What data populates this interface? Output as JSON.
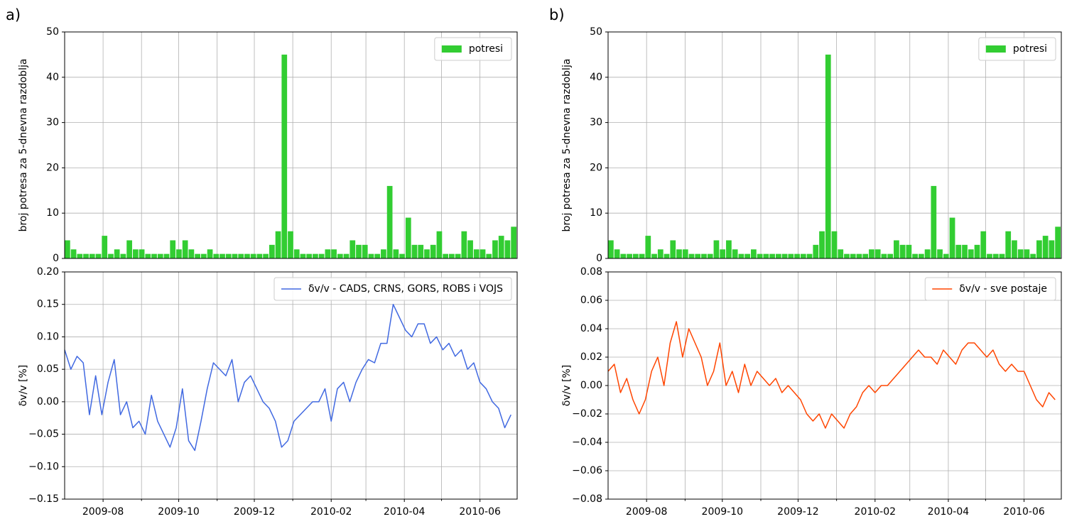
{
  "chart_data": [
    {
      "type": "histogram",
      "panel_label": "a)",
      "ylabel": "broj potresa za 5-dnevna razdoblja",
      "bins": [
        "2009-07-01",
        "2009-07-06",
        "2009-07-11",
        "2009-07-16",
        "2009-07-21",
        "2009-07-26",
        "2009-07-31",
        "2009-08-05",
        "2009-08-10",
        "2009-08-15",
        "2009-08-20",
        "2009-08-25",
        "2009-08-30",
        "2009-09-04",
        "2009-09-09",
        "2009-09-14",
        "2009-09-19",
        "2009-09-24",
        "2009-09-29",
        "2009-10-04",
        "2009-10-09",
        "2009-10-14",
        "2009-10-19",
        "2009-10-24",
        "2009-10-29",
        "2009-11-03",
        "2009-11-08",
        "2009-11-13",
        "2009-11-18",
        "2009-11-23",
        "2009-11-28",
        "2009-12-03",
        "2009-12-08",
        "2009-12-13",
        "2009-12-18",
        "2009-12-23",
        "2009-12-28",
        "2010-01-02",
        "2010-01-07",
        "2010-01-12",
        "2010-01-17",
        "2010-01-22",
        "2010-01-27",
        "2010-02-01",
        "2010-02-06",
        "2010-02-11",
        "2010-02-16",
        "2010-02-21",
        "2010-02-26",
        "2010-03-03",
        "2010-03-08",
        "2010-03-13",
        "2010-03-18",
        "2010-03-23",
        "2010-03-28",
        "2010-04-02",
        "2010-04-07",
        "2010-04-12",
        "2010-04-17",
        "2010-04-22",
        "2010-04-27",
        "2010-05-02",
        "2010-05-07",
        "2010-05-12",
        "2010-05-17",
        "2010-05-22",
        "2010-05-27",
        "2010-06-01",
        "2010-06-06",
        "2010-06-11",
        "2010-06-16",
        "2010-06-21",
        "2010-06-26",
        "2010-07-01"
      ],
      "series": [
        {
          "name": "potresi",
          "color": "#32cd32",
          "values": [
            4,
            2,
            1,
            1,
            1,
            1,
            5,
            1,
            2,
            1,
            4,
            2,
            2,
            1,
            1,
            1,
            1,
            4,
            2,
            4,
            2,
            1,
            1,
            2,
            1,
            1,
            1,
            1,
            1,
            1,
            1,
            1,
            1,
            3,
            6,
            45,
            6,
            2,
            1,
            1,
            1,
            1,
            2,
            2,
            1,
            1,
            4,
            3,
            3,
            1,
            1,
            2,
            16,
            2,
            1,
            9,
            3,
            3,
            2,
            3,
            6,
            1,
            1,
            1,
            6,
            4,
            2,
            2,
            1,
            4,
            5,
            4,
            7
          ]
        }
      ],
      "xlim": [
        "2009-07-01",
        "2010-07-01"
      ],
      "xticks": [
        "2009-08-01",
        "2009-09-01",
        "2009-10-01",
        "2009-11-01",
        "2009-12-01",
        "2010-01-01",
        "2010-02-01",
        "2010-03-01",
        "2010-04-01",
        "2010-05-01",
        "2010-06-01"
      ],
      "ylim": [
        0,
        50
      ],
      "yticks": [
        0,
        10,
        20,
        30,
        40,
        50
      ],
      "grid": true,
      "legend": "upper right"
    },
    {
      "type": "line",
      "ylabel": "δv/v [%]",
      "x": [
        "2009-07-01",
        "2009-07-06",
        "2009-07-11",
        "2009-07-16",
        "2009-07-21",
        "2009-07-26",
        "2009-07-31",
        "2009-08-05",
        "2009-08-10",
        "2009-08-15",
        "2009-08-20",
        "2009-08-25",
        "2009-08-30",
        "2009-09-04",
        "2009-09-09",
        "2009-09-14",
        "2009-09-19",
        "2009-09-24",
        "2009-09-29",
        "2009-10-04",
        "2009-10-09",
        "2009-10-14",
        "2009-10-19",
        "2009-10-24",
        "2009-10-29",
        "2009-11-03",
        "2009-11-08",
        "2009-11-13",
        "2009-11-18",
        "2009-11-23",
        "2009-11-28",
        "2009-12-03",
        "2009-12-08",
        "2009-12-13",
        "2009-12-18",
        "2009-12-23",
        "2009-12-28",
        "2010-01-02",
        "2010-01-07",
        "2010-01-12",
        "2010-01-17",
        "2010-01-22",
        "2010-01-27",
        "2010-02-01",
        "2010-02-06",
        "2010-02-11",
        "2010-02-16",
        "2010-02-21",
        "2010-02-26",
        "2010-03-03",
        "2010-03-08",
        "2010-03-13",
        "2010-03-18",
        "2010-03-23",
        "2010-03-28",
        "2010-04-02",
        "2010-04-07",
        "2010-04-12",
        "2010-04-17",
        "2010-04-22",
        "2010-04-27",
        "2010-05-02",
        "2010-05-07",
        "2010-05-12",
        "2010-05-17",
        "2010-05-22",
        "2010-05-27",
        "2010-06-01",
        "2010-06-06",
        "2010-06-11",
        "2010-06-16",
        "2010-06-21",
        "2010-06-26"
      ],
      "series": [
        {
          "name": "δv/v - CADS, CRNS, GORS, ROBS i VOJS",
          "color": "#4169e1",
          "values": [
            0.08,
            0.05,
            0.07,
            0.06,
            -0.02,
            0.04,
            -0.02,
            0.03,
            0.065,
            -0.02,
            0.0,
            -0.04,
            -0.03,
            -0.05,
            0.01,
            -0.03,
            -0.05,
            -0.07,
            -0.04,
            0.02,
            -0.06,
            -0.075,
            -0.03,
            0.02,
            0.06,
            0.05,
            0.04,
            0.065,
            0.0,
            0.03,
            0.04,
            0.02,
            0.0,
            -0.01,
            -0.03,
            -0.07,
            -0.06,
            -0.03,
            -0.02,
            -0.01,
            0.0,
            0.0,
            0.02,
            -0.03,
            0.02,
            0.03,
            0.0,
            0.03,
            0.05,
            0.065,
            0.06,
            0.09,
            0.09,
            0.15,
            0.13,
            0.11,
            0.1,
            0.12,
            0.12,
            0.09,
            0.1,
            0.08,
            0.09,
            0.07,
            0.08,
            0.05,
            0.06,
            0.03,
            0.02,
            0.0,
            -0.01,
            -0.04,
            -0.02
          ]
        }
      ],
      "xlim": [
        "2009-07-01",
        "2010-07-01"
      ],
      "xticks": [
        {
          "value": "2009-08-01",
          "label": "2009-08"
        },
        {
          "value": "2009-09-01",
          "label": null
        },
        {
          "value": "2009-10-01",
          "label": "2009-10"
        },
        {
          "value": "2009-11-01",
          "label": null
        },
        {
          "value": "2009-12-01",
          "label": "2009-12"
        },
        {
          "value": "2010-01-01",
          "label": null
        },
        {
          "value": "2010-02-01",
          "label": "2010-02"
        },
        {
          "value": "2010-03-01",
          "label": null
        },
        {
          "value": "2010-04-01",
          "label": "2010-04"
        },
        {
          "value": "2010-05-01",
          "label": null
        },
        {
          "value": "2010-06-01",
          "label": "2010-06"
        }
      ],
      "ylim": [
        -0.15,
        0.2
      ],
      "yticks": [
        {
          "value": -0.15,
          "label": "−0.15"
        },
        {
          "value": -0.1,
          "label": "−0.10"
        },
        {
          "value": -0.05,
          "label": "−0.05"
        },
        {
          "value": 0,
          "label": "0.00"
        },
        {
          "value": 0.05,
          "label": "0.05"
        },
        {
          "value": 0.1,
          "label": "0.10"
        },
        {
          "value": 0.15,
          "label": "0.15"
        },
        {
          "value": 0.2,
          "label": "0.20"
        }
      ],
      "grid": true,
      "legend": "upper right"
    },
    {
      "type": "histogram",
      "panel_label": "b)",
      "ylabel": "broj potresa za 5-dnevna razdoblja",
      "bins": [
        "2009-07-01",
        "2009-07-06",
        "2009-07-11",
        "2009-07-16",
        "2009-07-21",
        "2009-07-26",
        "2009-07-31",
        "2009-08-05",
        "2009-08-10",
        "2009-08-15",
        "2009-08-20",
        "2009-08-25",
        "2009-08-30",
        "2009-09-04",
        "2009-09-09",
        "2009-09-14",
        "2009-09-19",
        "2009-09-24",
        "2009-09-29",
        "2009-10-04",
        "2009-10-09",
        "2009-10-14",
        "2009-10-19",
        "2009-10-24",
        "2009-10-29",
        "2009-11-03",
        "2009-11-08",
        "2009-11-13",
        "2009-11-18",
        "2009-11-23",
        "2009-11-28",
        "2009-12-03",
        "2009-12-08",
        "2009-12-13",
        "2009-12-18",
        "2009-12-23",
        "2009-12-28",
        "2010-01-02",
        "2010-01-07",
        "2010-01-12",
        "2010-01-17",
        "2010-01-22",
        "2010-01-27",
        "2010-02-01",
        "2010-02-06",
        "2010-02-11",
        "2010-02-16",
        "2010-02-21",
        "2010-02-26",
        "2010-03-03",
        "2010-03-08",
        "2010-03-13",
        "2010-03-18",
        "2010-03-23",
        "2010-03-28",
        "2010-04-02",
        "2010-04-07",
        "2010-04-12",
        "2010-04-17",
        "2010-04-22",
        "2010-04-27",
        "2010-05-02",
        "2010-05-07",
        "2010-05-12",
        "2010-05-17",
        "2010-05-22",
        "2010-05-27",
        "2010-06-01",
        "2010-06-06",
        "2010-06-11",
        "2010-06-16",
        "2010-06-21",
        "2010-06-26",
        "2010-07-01"
      ],
      "series": [
        {
          "name": "potresi",
          "color": "#32cd32",
          "values": [
            4,
            2,
            1,
            1,
            1,
            1,
            5,
            1,
            2,
            1,
            4,
            2,
            2,
            1,
            1,
            1,
            1,
            4,
            2,
            4,
            2,
            1,
            1,
            2,
            1,
            1,
            1,
            1,
            1,
            1,
            1,
            1,
            1,
            3,
            6,
            45,
            6,
            2,
            1,
            1,
            1,
            1,
            2,
            2,
            1,
            1,
            4,
            3,
            3,
            1,
            1,
            2,
            16,
            2,
            1,
            9,
            3,
            3,
            2,
            3,
            6,
            1,
            1,
            1,
            6,
            4,
            2,
            2,
            1,
            4,
            5,
            4,
            7
          ]
        }
      ],
      "xlim": [
        "2009-07-01",
        "2010-07-01"
      ],
      "xticks": [
        "2009-08-01",
        "2009-09-01",
        "2009-10-01",
        "2009-11-01",
        "2009-12-01",
        "2010-01-01",
        "2010-02-01",
        "2010-03-01",
        "2010-04-01",
        "2010-05-01",
        "2010-06-01"
      ],
      "ylim": [
        0,
        50
      ],
      "yticks": [
        0,
        10,
        20,
        30,
        40,
        50
      ],
      "grid": true,
      "legend": "upper right"
    },
    {
      "type": "line",
      "ylabel": "δv/v [%]",
      "x": [
        "2009-07-01",
        "2009-07-06",
        "2009-07-11",
        "2009-07-16",
        "2009-07-21",
        "2009-07-26",
        "2009-07-31",
        "2009-08-05",
        "2009-08-10",
        "2009-08-15",
        "2009-08-20",
        "2009-08-25",
        "2009-08-30",
        "2009-09-04",
        "2009-09-09",
        "2009-09-14",
        "2009-09-19",
        "2009-09-24",
        "2009-09-29",
        "2009-10-04",
        "2009-10-09",
        "2009-10-14",
        "2009-10-19",
        "2009-10-24",
        "2009-10-29",
        "2009-11-03",
        "2009-11-08",
        "2009-11-13",
        "2009-11-18",
        "2009-11-23",
        "2009-11-28",
        "2009-12-03",
        "2009-12-08",
        "2009-12-13",
        "2009-12-18",
        "2009-12-23",
        "2009-12-28",
        "2010-01-02",
        "2010-01-07",
        "2010-01-12",
        "2010-01-17",
        "2010-01-22",
        "2010-01-27",
        "2010-02-01",
        "2010-02-06",
        "2010-02-11",
        "2010-02-16",
        "2010-02-21",
        "2010-02-26",
        "2010-03-03",
        "2010-03-08",
        "2010-03-13",
        "2010-03-18",
        "2010-03-23",
        "2010-03-28",
        "2010-04-02",
        "2010-04-07",
        "2010-04-12",
        "2010-04-17",
        "2010-04-22",
        "2010-04-27",
        "2010-05-02",
        "2010-05-07",
        "2010-05-12",
        "2010-05-17",
        "2010-05-22",
        "2010-05-27",
        "2010-06-01",
        "2010-06-06",
        "2010-06-11",
        "2010-06-16",
        "2010-06-21",
        "2010-06-26"
      ],
      "series": [
        {
          "name": "δv/v - sve postaje",
          "color": "#ff4500",
          "values": [
            0.01,
            0.015,
            -0.005,
            0.005,
            -0.01,
            -0.02,
            -0.01,
            0.01,
            0.02,
            0.0,
            0.03,
            0.045,
            0.02,
            0.04,
            0.03,
            0.02,
            0.0,
            0.01,
            0.03,
            0.0,
            0.01,
            -0.005,
            0.015,
            0.0,
            0.01,
            0.005,
            0.0,
            0.005,
            -0.005,
            0.0,
            -0.005,
            -0.01,
            -0.02,
            -0.025,
            -0.02,
            -0.03,
            -0.02,
            -0.025,
            -0.03,
            -0.02,
            -0.015,
            -0.005,
            0.0,
            -0.005,
            0.0,
            0.0,
            0.005,
            0.01,
            0.015,
            0.02,
            0.025,
            0.02,
            0.02,
            0.015,
            0.025,
            0.02,
            0.015,
            0.025,
            0.03,
            0.03,
            0.025,
            0.02,
            0.025,
            0.015,
            0.01,
            0.015,
            0.01,
            0.01,
            0.0,
            -0.01,
            -0.015,
            -0.005,
            -0.01
          ]
        }
      ],
      "xlim": [
        "2009-07-01",
        "2010-07-01"
      ],
      "xticks": [
        {
          "value": "2009-08-01",
          "label": "2009-08"
        },
        {
          "value": "2009-09-01",
          "label": null
        },
        {
          "value": "2009-10-01",
          "label": "2009-10"
        },
        {
          "value": "2009-11-01",
          "label": null
        },
        {
          "value": "2009-12-01",
          "label": "2009-12"
        },
        {
          "value": "2010-01-01",
          "label": null
        },
        {
          "value": "2010-02-01",
          "label": "2010-02"
        },
        {
          "value": "2010-03-01",
          "label": null
        },
        {
          "value": "2010-04-01",
          "label": "2010-04"
        },
        {
          "value": "2010-05-01",
          "label": null
        },
        {
          "value": "2010-06-01",
          "label": "2010-06"
        }
      ],
      "ylim": [
        -0.08,
        0.08
      ],
      "yticks": [
        {
          "value": -0.08,
          "label": "−0.08"
        },
        {
          "value": -0.06,
          "label": "−0.06"
        },
        {
          "value": -0.04,
          "label": "−0.04"
        },
        {
          "value": -0.02,
          "label": "−0.02"
        },
        {
          "value": 0,
          "label": "0.00"
        },
        {
          "value": 0.02,
          "label": "0.02"
        },
        {
          "value": 0.04,
          "label": "0.04"
        },
        {
          "value": 0.06,
          "label": "0.06"
        },
        {
          "value": 0.08,
          "label": "0.08"
        }
      ],
      "grid": true,
      "legend": "upper right"
    }
  ]
}
